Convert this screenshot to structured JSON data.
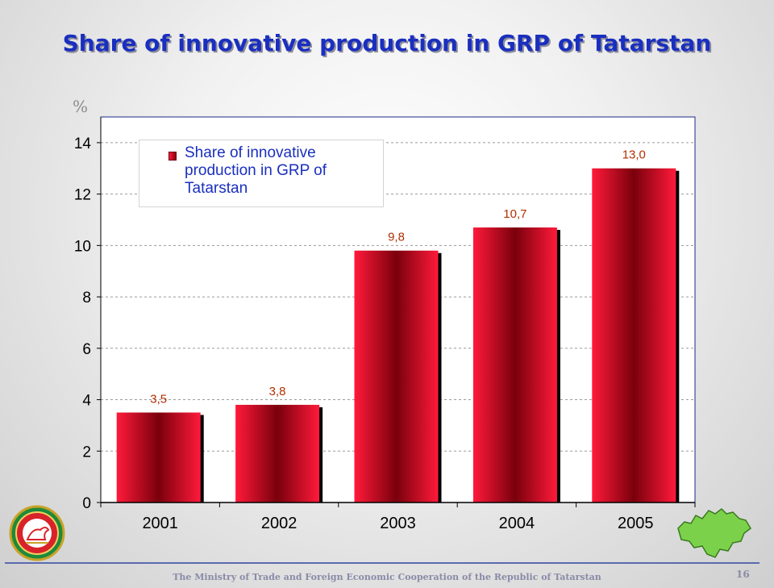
{
  "title": "Share of innovative production in GRP of Tatarstan",
  "unit": "%",
  "footer": "The Ministry of Trade and Foreign Economic Cooperation of the Republic of Tatarstan",
  "page_number": "16",
  "colors": {
    "title": "#1a2fbf",
    "bar_light": "#ff1a3a",
    "bar_dark": "#7a000c",
    "label": "#b03000"
  },
  "chart_data": {
    "type": "bar",
    "categories": [
      "2001",
      "2002",
      "2003",
      "2004",
      "2005"
    ],
    "series": [
      {
        "name": "Share of innovative production in GRP of Tatarstan",
        "values": [
          3.5,
          3.8,
          9.8,
          10.7,
          13.0
        ],
        "labels": [
          "3,5",
          "3,8",
          "9,8",
          "10,7",
          "13,0"
        ]
      }
    ],
    "y_ticks": [
      "0",
      "2",
      "4",
      "6",
      "8",
      "10",
      "12",
      "14"
    ],
    "ylim": [
      0,
      15
    ],
    "ylabel": "%",
    "grid": "horizontal dashed",
    "legend_position": "top-left"
  }
}
